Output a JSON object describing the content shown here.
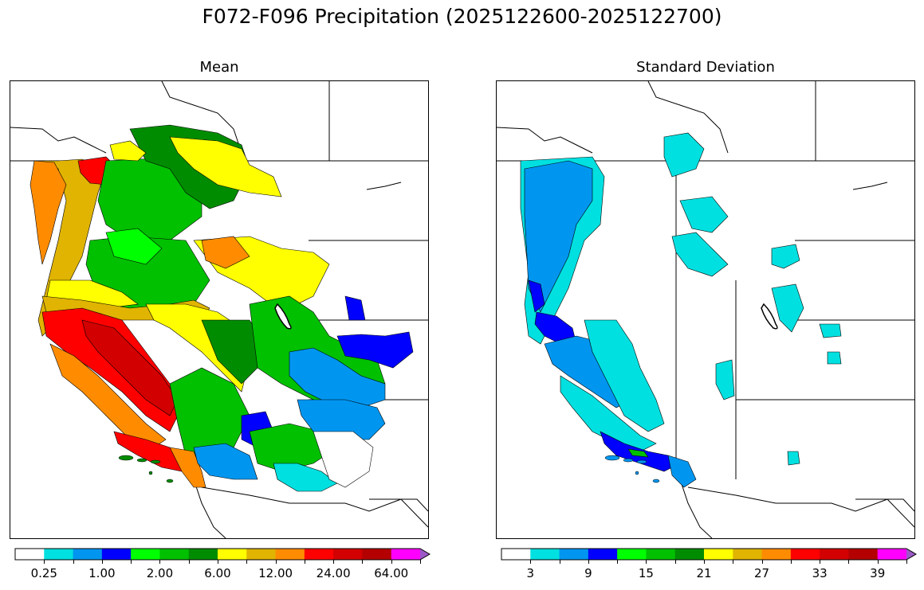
{
  "figure": {
    "title": "F072-F096 Precipitation (2025122600-2025122700)"
  },
  "panels": [
    {
      "id": "mean",
      "title": "Mean",
      "colorbar": {
        "colors": [
          "#ffffff",
          "#00e0e0",
          "#0096f0",
          "#0000ff",
          "#00ff00",
          "#00c000",
          "#008c00",
          "#ffff00",
          "#e0b400",
          "#ff8c00",
          "#ff0000",
          "#d20000",
          "#b40000",
          "#ff00ff",
          "#9b59c7"
        ],
        "tick_labels": [
          "0.25",
          "1.00",
          "2.00",
          "6.00",
          "12.00",
          "24.00",
          "64.00"
        ],
        "extend": "max"
      }
    },
    {
      "id": "stddev",
      "title": "Standard Deviation",
      "colorbar": {
        "colors": [
          "#ffffff",
          "#00e0e0",
          "#0096f0",
          "#0000ff",
          "#00ff00",
          "#00c000",
          "#008c00",
          "#ffff00",
          "#e0b400",
          "#ff8c00",
          "#ff0000",
          "#d20000",
          "#b40000",
          "#ff00ff",
          "#9b59c7"
        ],
        "tick_labels": [
          "3",
          "9",
          "15",
          "21",
          "27",
          "33",
          "39"
        ],
        "extend": "max"
      }
    }
  ]
}
